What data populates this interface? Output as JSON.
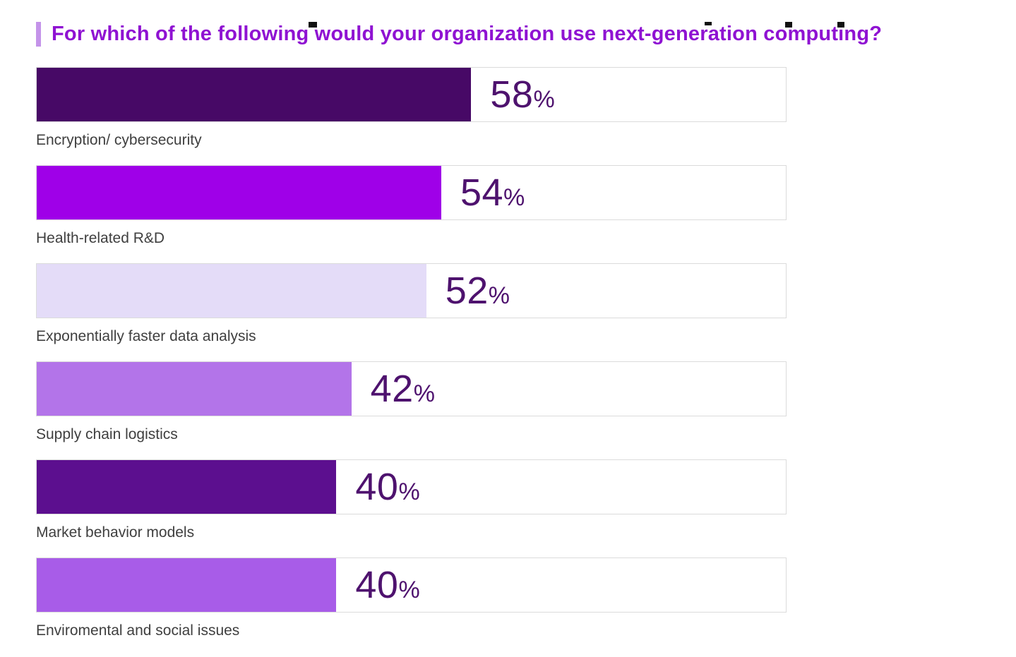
{
  "page": {
    "background": "#ffffff"
  },
  "title": {
    "text": "For which of the following would your organization use next-generation computing?",
    "color": "#8F12D2",
    "accent_color": "#C493E9"
  },
  "chart_data": {
    "type": "bar",
    "orientation": "horizontal",
    "title": "For which of the following would your organization use next-generation computing?",
    "xlim": [
      0,
      100
    ],
    "grid": false,
    "legend": "none",
    "percent_sign": "%",
    "value_text_color": "#4E126E",
    "label_text_color": "#3F3F3F",
    "track_border_color": "#DBDBDB",
    "categories": [
      "Encryption/ cybersecurity",
      "Health-related R&D",
      "Exponentially faster data analysis",
      "Supply chain logistics",
      "Market behavior models",
      "Enviromental and social issues"
    ],
    "values": [
      58,
      54,
      52,
      42,
      40,
      40
    ],
    "items": [
      {
        "label": "Encryption/ cybersecurity",
        "value": 58,
        "color": "#470966"
      },
      {
        "label": "Health-related R&D",
        "value": 54,
        "color": "#9F00E8"
      },
      {
        "label": "Exponentially faster data analysis",
        "value": 52,
        "color": "#E4DCF8"
      },
      {
        "label": "Supply chain logistics",
        "value": 42,
        "color": "#B374E9"
      },
      {
        "label": "Market behavior models",
        "value": 40,
        "color": "#5C0F8F"
      },
      {
        "label": "Enviromental and social issues",
        "value": 40,
        "color": "#A85CE8"
      }
    ]
  }
}
